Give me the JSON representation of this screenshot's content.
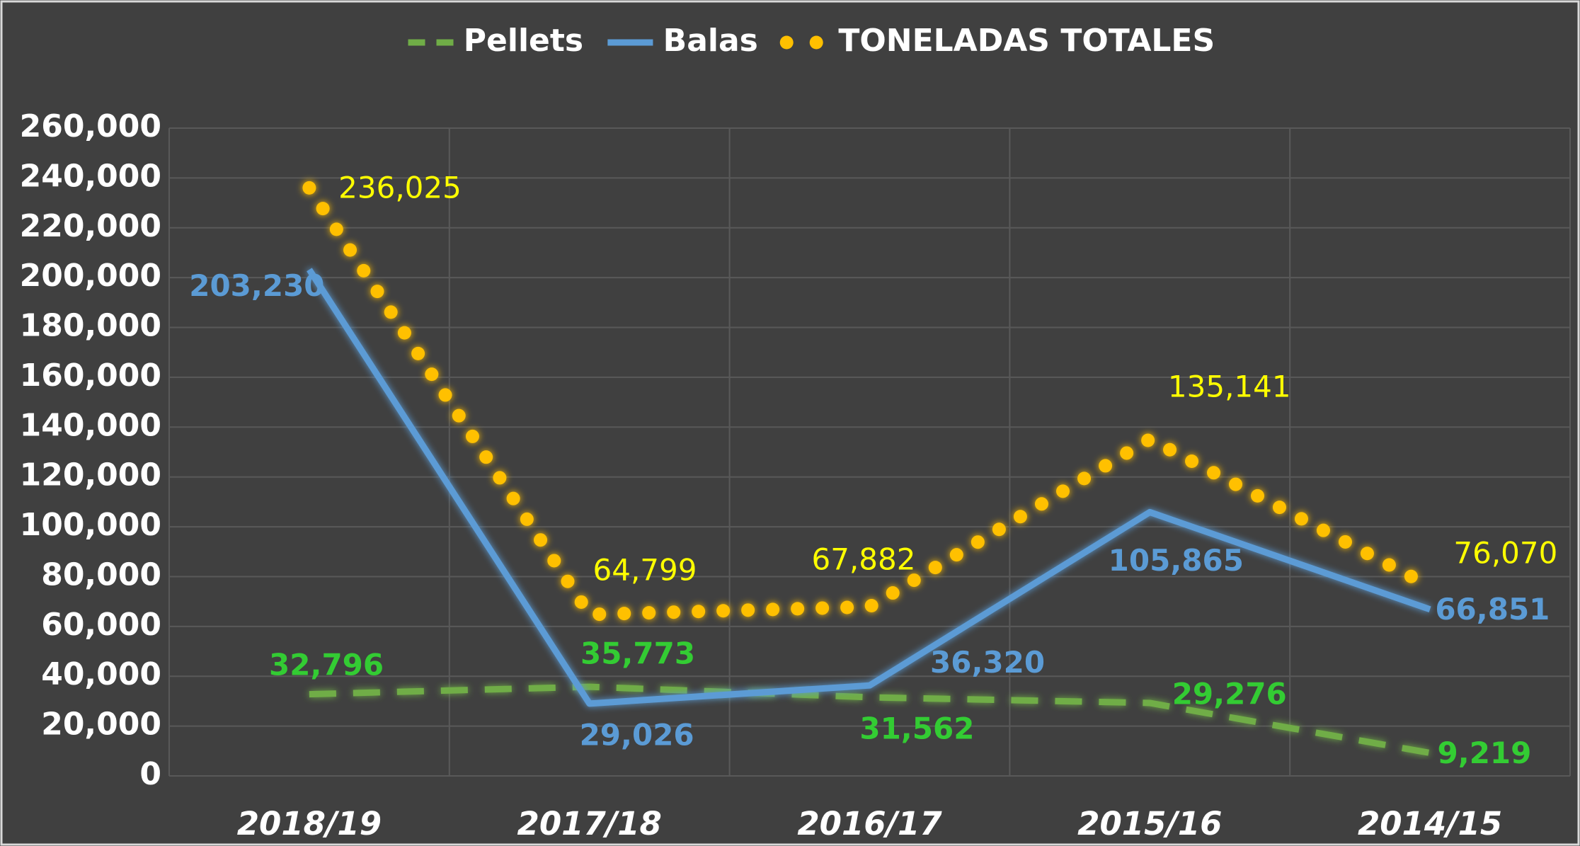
{
  "chart_data": {
    "type": "line",
    "categories": [
      "2018/19",
      "2017/18",
      "2016/17",
      "2015/16",
      "2014/15"
    ],
    "series": [
      {
        "name": "Pellets",
        "color": "#70ad47",
        "label_color": "#33cc33",
        "style": "dashed",
        "values": [
          32796,
          35773,
          31562,
          29276,
          9219
        ],
        "value_labels": [
          "32,796",
          "35,773",
          "31,562",
          "29,276",
          "9,219"
        ]
      },
      {
        "name": "Balas",
        "color": "#5b9bd5",
        "label_color": "#5b9bd5",
        "style": "solid",
        "values": [
          203230,
          29026,
          36320,
          105865,
          66851
        ],
        "value_labels": [
          "203,230",
          "29,026",
          "36,320",
          "105,865",
          "66,851"
        ]
      },
      {
        "name": "TONELADAS TOTALES",
        "color": "#ffc000",
        "label_color": "#ffff00",
        "style": "dotted",
        "values": [
          236025,
          64799,
          67882,
          135141,
          76070
        ],
        "value_labels": [
          "236,025",
          "64,799",
          "67,882",
          "135,141",
          "76,070"
        ]
      }
    ],
    "ylim": [
      0,
      260000
    ],
    "yticks": [
      {
        "value": 0,
        "label": "0"
      },
      {
        "value": 20000,
        "label": "20,000"
      },
      {
        "value": 40000,
        "label": "40,000"
      },
      {
        "value": 60000,
        "label": "60,000"
      },
      {
        "value": 80000,
        "label": "80,000"
      },
      {
        "value": 100000,
        "label": "100,000"
      },
      {
        "value": 120000,
        "label": "120,000"
      },
      {
        "value": 140000,
        "label": "140,000"
      },
      {
        "value": 160000,
        "label": "160,000"
      },
      {
        "value": 180000,
        "label": "180,000"
      },
      {
        "value": 200000,
        "label": "200,000"
      },
      {
        "value": 220000,
        "label": "220,000"
      },
      {
        "value": 240000,
        "label": "240,000"
      },
      {
        "value": 260000,
        "label": "260,000"
      }
    ],
    "grid": true,
    "legend": "top"
  }
}
